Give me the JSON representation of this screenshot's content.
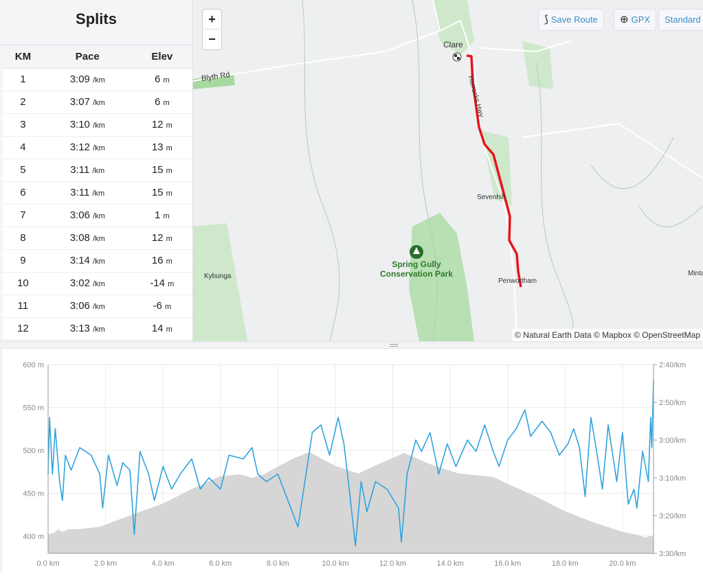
{
  "splits": {
    "title": "Splits",
    "headers": [
      "KM",
      "Pace",
      "Elev"
    ],
    "pace_unit": "/km",
    "elev_unit": "m",
    "rows": [
      {
        "km": "1",
        "pace": "3:09",
        "elev": "6"
      },
      {
        "km": "2",
        "pace": "3:07",
        "elev": "6"
      },
      {
        "km": "3",
        "pace": "3:10",
        "elev": "12"
      },
      {
        "km": "4",
        "pace": "3:12",
        "elev": "13"
      },
      {
        "km": "5",
        "pace": "3:11",
        "elev": "15"
      },
      {
        "km": "6",
        "pace": "3:11",
        "elev": "15"
      },
      {
        "km": "7",
        "pace": "3:06",
        "elev": "1"
      },
      {
        "km": "8",
        "pace": "3:08",
        "elev": "12"
      },
      {
        "km": "9",
        "pace": "3:14",
        "elev": "16"
      },
      {
        "km": "10",
        "pace": "3:02",
        "elev": "-14"
      },
      {
        "km": "11",
        "pace": "3:06",
        "elev": "-6"
      },
      {
        "km": "12",
        "pace": "3:13",
        "elev": "14"
      }
    ]
  },
  "map": {
    "zoom_in": "+",
    "zoom_out": "−",
    "save_route": "Save Route",
    "gpx": "GPX",
    "style": "Standard",
    "labels": {
      "clare": "Clare",
      "blyth": "Blyth Rd",
      "horrocks": "Horrocks Hwy",
      "sevenhill": "Sevenhill",
      "park1": "Spring Gully",
      "park2": "Conservation Park",
      "kybunga": "Kybunga",
      "penwortham": "Penwortham",
      "mintaro": "Minta"
    },
    "attribution": "© Natural Earth Data © Mapbox © OpenStreetMap",
    "route_color": "#e8141c"
  },
  "chart_data": {
    "type": "line",
    "xlabel": "",
    "x_ticks": [
      "0.0 km",
      "2.0 km",
      "4.0 km",
      "6.0 km",
      "8.0 km",
      "10.0 km",
      "12.0 km",
      "14.0 km",
      "16.0 km",
      "18.0 km",
      "20.0 km"
    ],
    "y_left_ticks": [
      "600 m",
      "550 m",
      "500 m",
      "450 m",
      "400 m"
    ],
    "y_right_ticks": [
      "2:40/km",
      "2:50/km",
      "3:00/km",
      "3:10/km",
      "3:20/km",
      "3:30/km"
    ],
    "xlim": [
      0,
      21.08
    ],
    "ylim_elev": [
      380,
      600
    ],
    "ylim_pace_sec": [
      160,
      210
    ],
    "series": [
      {
        "name": "Elevation",
        "unit": "m",
        "color": "#d6d6d6",
        "points": [
          [
            0,
            402
          ],
          [
            0.2,
            404
          ],
          [
            0.35,
            408
          ],
          [
            0.5,
            405
          ],
          [
            0.7,
            408
          ],
          [
            1,
            408
          ],
          [
            1.8,
            411
          ],
          [
            3,
            426
          ],
          [
            4,
            438
          ],
          [
            5,
            455
          ],
          [
            6,
            470
          ],
          [
            6.7,
            472
          ],
          [
            7.1,
            468
          ],
          [
            7.5,
            472
          ],
          [
            8,
            481
          ],
          [
            8.5,
            490
          ],
          [
            9.1,
            498
          ],
          [
            10,
            482
          ],
          [
            10.8,
            473
          ],
          [
            11.5,
            484
          ],
          [
            12.4,
            497
          ],
          [
            13.3,
            484
          ],
          [
            14.3,
            473
          ],
          [
            15.5,
            469
          ],
          [
            16,
            461
          ],
          [
            17,
            446
          ],
          [
            18,
            429
          ],
          [
            19,
            416
          ],
          [
            20,
            405
          ],
          [
            20.6,
            401
          ],
          [
            20.8,
            398
          ],
          [
            21,
            401
          ],
          [
            21.08,
            398
          ]
        ]
      },
      {
        "name": "Pace",
        "unit": "sec/km",
        "color": "#2ea3dc",
        "points": [
          [
            0,
            189
          ],
          [
            0.05,
            174
          ],
          [
            0.15,
            189
          ],
          [
            0.25,
            177
          ],
          [
            0.4,
            191
          ],
          [
            0.5,
            196
          ],
          [
            0.6,
            184
          ],
          [
            0.8,
            188
          ],
          [
            1.1,
            182
          ],
          [
            1.5,
            184
          ],
          [
            1.8,
            189
          ],
          [
            1.9,
            198
          ],
          [
            2.1,
            184
          ],
          [
            2.4,
            192
          ],
          [
            2.6,
            186
          ],
          [
            2.85,
            188
          ],
          [
            3.0,
            205
          ],
          [
            3.2,
            183
          ],
          [
            3.5,
            189
          ],
          [
            3.7,
            196
          ],
          [
            4.0,
            187
          ],
          [
            4.3,
            193
          ],
          [
            4.6,
            189
          ],
          [
            5.0,
            185
          ],
          [
            5.3,
            193
          ],
          [
            5.6,
            190
          ],
          [
            6.0,
            193
          ],
          [
            6.3,
            184
          ],
          [
            6.8,
            185
          ],
          [
            7.1,
            182
          ],
          [
            7.3,
            189
          ],
          [
            7.6,
            191
          ],
          [
            8.0,
            189
          ],
          [
            8.4,
            197
          ],
          [
            8.7,
            203
          ],
          [
            8.9,
            193
          ],
          [
            9.2,
            178
          ],
          [
            9.5,
            176
          ],
          [
            9.8,
            184
          ],
          [
            10.1,
            174
          ],
          [
            10.3,
            181
          ],
          [
            10.5,
            194
          ],
          [
            10.7,
            208
          ],
          [
            10.9,
            191
          ],
          [
            11.1,
            199
          ],
          [
            11.4,
            191
          ],
          [
            11.8,
            193
          ],
          [
            12.2,
            198
          ],
          [
            12.3,
            207
          ],
          [
            12.5,
            189
          ],
          [
            12.8,
            180
          ],
          [
            13.0,
            183
          ],
          [
            13.3,
            178
          ],
          [
            13.6,
            189
          ],
          [
            13.9,
            181
          ],
          [
            14.2,
            187
          ],
          [
            14.6,
            180
          ],
          [
            14.9,
            183
          ],
          [
            15.2,
            176
          ],
          [
            15.5,
            183
          ],
          [
            15.7,
            187
          ],
          [
            16.0,
            180
          ],
          [
            16.3,
            177
          ],
          [
            16.6,
            172
          ],
          [
            16.8,
            179
          ],
          [
            17.2,
            175
          ],
          [
            17.5,
            178
          ],
          [
            17.8,
            184
          ],
          [
            18.1,
            181
          ],
          [
            18.3,
            177
          ],
          [
            18.5,
            182
          ],
          [
            18.7,
            195
          ],
          [
            18.9,
            174
          ],
          [
            19.1,
            183
          ],
          [
            19.3,
            193
          ],
          [
            19.5,
            176
          ],
          [
            19.8,
            191
          ],
          [
            20.0,
            178
          ],
          [
            20.2,
            197
          ],
          [
            20.4,
            193
          ],
          [
            20.5,
            198
          ],
          [
            20.7,
            183
          ],
          [
            20.9,
            191
          ],
          [
            20.98,
            174
          ],
          [
            21.02,
            182
          ],
          [
            21.08,
            164
          ]
        ]
      }
    ]
  }
}
